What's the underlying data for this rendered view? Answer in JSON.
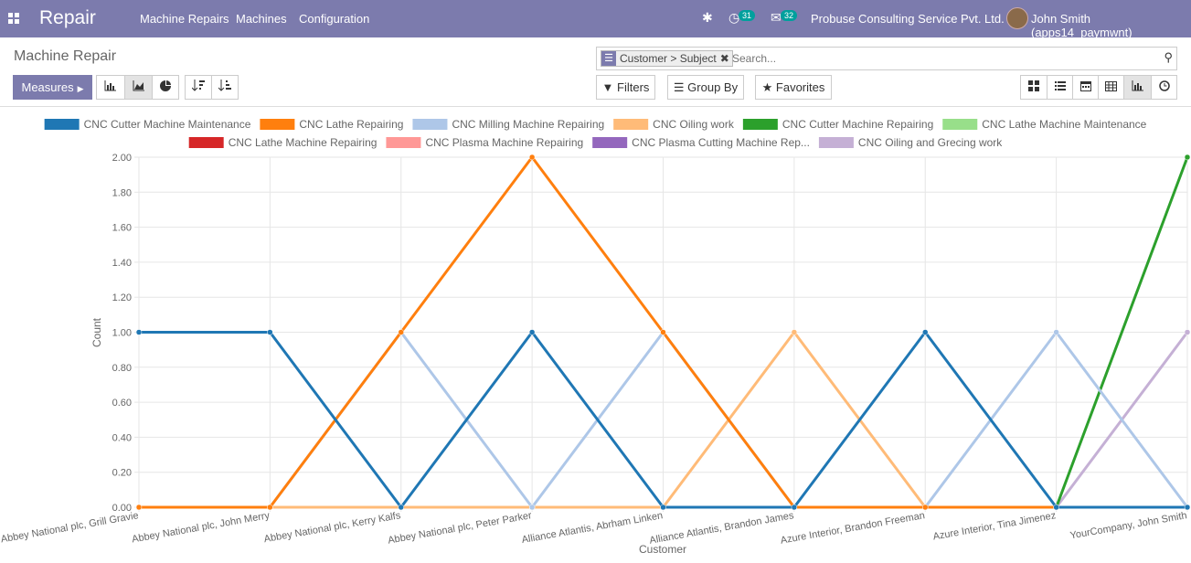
{
  "app": {
    "brand": "Repair"
  },
  "nav": [
    {
      "label": "Machine Repairs"
    },
    {
      "label": "Machines"
    },
    {
      "label": "Configuration"
    }
  ],
  "systray": {
    "activity_count": "31",
    "messages_count": "32",
    "company": "Probuse Consulting Service Pvt. Ltd.",
    "user": "John Smith (apps14_paymwnt)"
  },
  "control_panel": {
    "title": "Machine Repair",
    "facet": "Customer > Subject",
    "search_placeholder": "Search...",
    "measures_label": "Measures",
    "filters_label": "Filters",
    "groupby_label": "Group By",
    "favorites_label": "Favorites"
  },
  "colors": {
    "brand": "#7c7bad",
    "badge": "#00a09d"
  },
  "chart_data": {
    "type": "line",
    "xlabel": "Customer",
    "ylabel": "Count",
    "ylim": [
      0,
      2
    ],
    "yticks": [
      "0.00",
      "0.20",
      "0.40",
      "0.60",
      "0.80",
      "1.00",
      "1.20",
      "1.40",
      "1.60",
      "1.80",
      "2.00"
    ],
    "grid": true,
    "legend_position": "top",
    "categories": [
      "Abbey National plc, Grill Gravie",
      "Abbey National plc, John Merry",
      "Abbey National plc, Kerry Kalfs",
      "Abbey National plc, Peter Parker",
      "Alliance Atlantis, Abrham Linken",
      "Alliance Atlantis, Brandon James",
      "Azure Interior, Brandon Freeman",
      "Azure Interior, Tina Jimenez",
      "YourCompany, John Smith"
    ],
    "series": [
      {
        "name": "CNC Cutter Machine Maintenance",
        "color": "#1f77b4",
        "values": [
          1,
          1,
          0,
          1,
          0,
          0,
          1,
          0,
          0
        ]
      },
      {
        "name": "CNC Lathe Repairing",
        "color": "#ff7f0e",
        "values": [
          0,
          0,
          1,
          2,
          1,
          0,
          0,
          0,
          0
        ]
      },
      {
        "name": "CNC Milling Machine Repairing",
        "color": "#aec7e8",
        "values": [
          0,
          0,
          1,
          0,
          1,
          0,
          0,
          1,
          0
        ]
      },
      {
        "name": "CNC Oiling work",
        "color": "#ffbb78",
        "values": [
          0,
          0,
          0,
          0,
          0,
          1,
          0,
          0,
          0
        ]
      },
      {
        "name": "CNC Cutter Machine Repairing",
        "color": "#2ca02c",
        "values": [
          0,
          0,
          0,
          0,
          0,
          0,
          0,
          0,
          2
        ]
      },
      {
        "name": "CNC Lathe Machine Maintenance",
        "color": "#98df8a",
        "values": [
          0,
          0,
          0,
          0,
          0,
          0,
          0,
          0,
          0
        ]
      },
      {
        "name": "CNC Lathe Machine Repairing",
        "color": "#d62728",
        "values": [
          0,
          0,
          0,
          0,
          0,
          0,
          0,
          0,
          0
        ]
      },
      {
        "name": "CNC Plasma Machine Repairing",
        "color": "#ff9896",
        "values": [
          0,
          0,
          0,
          0,
          0,
          0,
          0,
          0,
          0
        ]
      },
      {
        "name": "CNC Plasma Cutting Machine Rep...",
        "color": "#9467bd",
        "values": [
          0,
          0,
          0,
          0,
          0,
          0,
          0,
          0,
          0
        ]
      },
      {
        "name": "CNC Oiling and Grecing work",
        "color": "#c5b0d5",
        "values": [
          0,
          0,
          0,
          0,
          0,
          0,
          0,
          0,
          1
        ]
      }
    ]
  }
}
